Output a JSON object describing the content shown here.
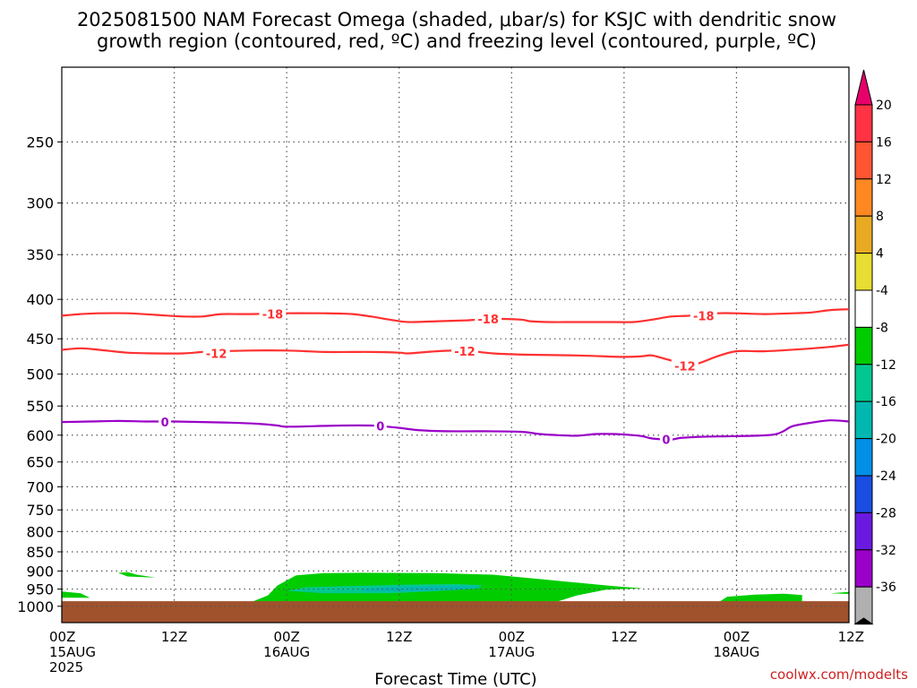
{
  "chart_data": {
    "type": "heatmap",
    "title": [
      "2025081500 NAM Forecast Omega (shaded, μbar/s) for KSJC with dendritic snow",
      "growth region (contoured, red, ºC) and freezing level (contoured, purple, ºC)"
    ],
    "xlabel": "Forecast Time (UTC)",
    "ylabel": "",
    "x_hours_range": [
      0,
      84
    ],
    "y_pressure_range": [
      1050,
      200
    ],
    "y_scale": "log-pressure (reversed)",
    "grid": "dotted",
    "y_ticks": [
      250,
      300,
      350,
      400,
      450,
      500,
      550,
      600,
      650,
      700,
      750,
      800,
      850,
      900,
      950,
      1000
    ],
    "x_ticks": [
      {
        "hour": 0,
        "line1": "00Z",
        "line2": "15AUG",
        "line3": "2025"
      },
      {
        "hour": 12,
        "line1": "12Z",
        "line2": "",
        "line3": ""
      },
      {
        "hour": 24,
        "line1": "00Z",
        "line2": "16AUG",
        "line3": ""
      },
      {
        "hour": 36,
        "line1": "12Z",
        "line2": "",
        "line3": ""
      },
      {
        "hour": 48,
        "line1": "00Z",
        "line2": "17AUG",
        "line3": ""
      },
      {
        "hour": 60,
        "line1": "12Z",
        "line2": "",
        "line3": ""
      },
      {
        "hour": 72,
        "line1": "00Z",
        "line2": "18AUG",
        "line3": ""
      },
      {
        "hour": 84,
        "line1": "12Z",
        "line2": "",
        "line3": ""
      }
    ],
    "series": [
      {
        "name": "-18",
        "kind": "dendritic snow growth region isotherm",
        "color": "#ff3030",
        "labels": [
          {
            "label": "-18",
            "x": 22.5,
            "y": 418
          },
          {
            "label": "-18",
            "x": 45.5,
            "y": 424
          },
          {
            "label": "-18",
            "x": 68.5,
            "y": 420
          }
        ],
        "points": [
          [
            0,
            420
          ],
          [
            2,
            418
          ],
          [
            4,
            417
          ],
          [
            7,
            417
          ],
          [
            10,
            419
          ],
          [
            13,
            421
          ],
          [
            15,
            421
          ],
          [
            17,
            418
          ],
          [
            20,
            418
          ],
          [
            24,
            417
          ],
          [
            28,
            417
          ],
          [
            31,
            418
          ],
          [
            33,
            421
          ],
          [
            35,
            425
          ],
          [
            37,
            428
          ],
          [
            40,
            427
          ],
          [
            43,
            426
          ],
          [
            46,
            424
          ],
          [
            49,
            425
          ],
          [
            50,
            427
          ],
          [
            52,
            428
          ],
          [
            55,
            428
          ],
          [
            59,
            428
          ],
          [
            61,
            428
          ],
          [
            63,
            425
          ],
          [
            65,
            421
          ],
          [
            67,
            420
          ],
          [
            70,
            417
          ],
          [
            72,
            417
          ],
          [
            75,
            418
          ],
          [
            78,
            417
          ],
          [
            80,
            416
          ],
          [
            82,
            413
          ],
          [
            84,
            412
          ]
        ]
      },
      {
        "name": "-12",
        "kind": "dendritic snow growth region isotherm",
        "color": "#ff3030",
        "labels": [
          {
            "label": "-12",
            "x": 16.5,
            "y": 470
          },
          {
            "label": "-12",
            "x": 43.0,
            "y": 467
          },
          {
            "label": "-12",
            "x": 66.5,
            "y": 488
          }
        ],
        "points": [
          [
            0,
            465
          ],
          [
            2,
            463
          ],
          [
            4,
            465
          ],
          [
            7,
            469
          ],
          [
            10,
            470
          ],
          [
            13,
            470
          ],
          [
            15,
            468
          ],
          [
            17,
            467
          ],
          [
            20,
            466
          ],
          [
            24,
            466
          ],
          [
            28,
            468
          ],
          [
            31,
            468
          ],
          [
            33,
            468
          ],
          [
            36,
            469
          ],
          [
            37,
            470
          ],
          [
            40,
            467
          ],
          [
            43,
            466
          ],
          [
            46,
            470
          ],
          [
            50,
            472
          ],
          [
            55,
            473
          ],
          [
            60,
            475
          ],
          [
            62,
            474
          ],
          [
            63,
            473
          ],
          [
            65,
            480
          ],
          [
            67,
            486
          ],
          [
            68,
            484
          ],
          [
            70,
            474
          ],
          [
            72,
            467
          ],
          [
            75,
            467
          ],
          [
            79,
            464
          ],
          [
            82,
            461
          ],
          [
            84,
            458
          ]
        ]
      },
      {
        "name": "0",
        "kind": "freezing level isotherm",
        "color": "#9a00c8",
        "labels": [
          {
            "label": "0",
            "x": 11.0,
            "y": 577
          },
          {
            "label": "0",
            "x": 34.0,
            "y": 584
          },
          {
            "label": "0",
            "x": 64.5,
            "y": 608
          }
        ],
        "points": [
          [
            0,
            577
          ],
          [
            3,
            576
          ],
          [
            6,
            575
          ],
          [
            9,
            576
          ],
          [
            12,
            576
          ],
          [
            15,
            577
          ],
          [
            18,
            578
          ],
          [
            21,
            580
          ],
          [
            23,
            583
          ],
          [
            24,
            585
          ],
          [
            27,
            584
          ],
          [
            30,
            583
          ],
          [
            33,
            583
          ],
          [
            34,
            584
          ],
          [
            36,
            587
          ],
          [
            38,
            591
          ],
          [
            41,
            593
          ],
          [
            45,
            593
          ],
          [
            49,
            594
          ],
          [
            51,
            598
          ],
          [
            53,
            600
          ],
          [
            55,
            601
          ],
          [
            57,
            598
          ],
          [
            59,
            598
          ],
          [
            61,
            600
          ],
          [
            62,
            602
          ],
          [
            63,
            606
          ],
          [
            65,
            608
          ],
          [
            66,
            605
          ],
          [
            68,
            603
          ],
          [
            71,
            602
          ],
          [
            74,
            601
          ],
          [
            76,
            599
          ],
          [
            77,
            593
          ],
          [
            78,
            584
          ],
          [
            80,
            578
          ],
          [
            82,
            574
          ],
          [
            84,
            576
          ]
        ]
      }
    ],
    "shaded_regions": [
      {
        "level": "-4 to -8",
        "color": "#00cc00",
        "polygon": [
          [
            6,
            905
          ],
          [
            7,
            903
          ],
          [
            8,
            910
          ],
          [
            10,
            918
          ],
          [
            7,
            915
          ]
        ]
      },
      {
        "level": "-4 to -8",
        "color": "#00cc00",
        "polygon": [
          [
            0,
            957
          ],
          [
            0,
            975
          ],
          [
            3,
            975
          ],
          [
            2,
            962
          ]
        ]
      },
      {
        "level": "-4 to -8",
        "color": "#00cc00",
        "polygon": [
          [
            20,
            990
          ],
          [
            22,
            968
          ],
          [
            23,
            940
          ],
          [
            25,
            912
          ],
          [
            28,
            906
          ],
          [
            32,
            905
          ],
          [
            40,
            906
          ],
          [
            46,
            910
          ],
          [
            51,
            922
          ],
          [
            55,
            932
          ],
          [
            59,
            942
          ],
          [
            62,
            948
          ],
          [
            58,
            952
          ],
          [
            55,
            968
          ],
          [
            53,
            985
          ],
          [
            48,
            995
          ],
          [
            38,
            995
          ],
          [
            30,
            994
          ],
          [
            25,
            993
          ],
          [
            20,
            992
          ]
        ]
      },
      {
        "level": "-8 to -12",
        "color": "#00c890",
        "polygon": [
          [
            24,
            955
          ],
          [
            26,
            945
          ],
          [
            30,
            942
          ],
          [
            36,
            938
          ],
          [
            42,
            936
          ],
          [
            45,
            939
          ],
          [
            44,
            946
          ],
          [
            40,
            956
          ],
          [
            35,
            962
          ],
          [
            28,
            962
          ]
        ]
      },
      {
        "level": "-12 to -16",
        "color": "#00b8b0",
        "polygon": [
          [
            32,
            950
          ],
          [
            35,
            944
          ],
          [
            40,
            942
          ],
          [
            44,
            942
          ],
          [
            45,
            946
          ],
          [
            42,
            953
          ],
          [
            36,
            957
          ],
          [
            32,
            956
          ]
        ]
      },
      {
        "level": "-4 to -8",
        "color": "#00cc00",
        "polygon": [
          [
            70,
            990
          ],
          [
            71,
            972
          ],
          [
            74,
            966
          ],
          [
            77,
            963
          ],
          [
            79,
            967
          ],
          [
            79,
            990
          ]
        ]
      },
      {
        "level": "-4 to -8",
        "color": "#00cc00",
        "polygon": [
          [
            82,
            962
          ],
          [
            84,
            958
          ],
          [
            84,
            964
          ]
        ]
      }
    ],
    "ground": {
      "color": "#a0522d",
      "top_pressure": 985
    },
    "colorbar": {
      "labels": [
        "20",
        "16",
        "12",
        "8",
        "4",
        "-4",
        "-8",
        "-12",
        "-16",
        "-20",
        "-24",
        "-28",
        "-32",
        "-36"
      ],
      "colors_top_to_bottom": [
        "#e8006a",
        "#ff3344",
        "#ff5533",
        "#ff8822",
        "#e8aa22",
        "#e8dd33",
        "#ffffff",
        "#00cc00",
        "#00c890",
        "#00b8b0",
        "#0090e8",
        "#1a4de0",
        "#6a1ae0",
        "#9a00c8",
        "#b0b0b0",
        "#000000"
      ]
    },
    "credit": "coolwx.com/modelts"
  }
}
